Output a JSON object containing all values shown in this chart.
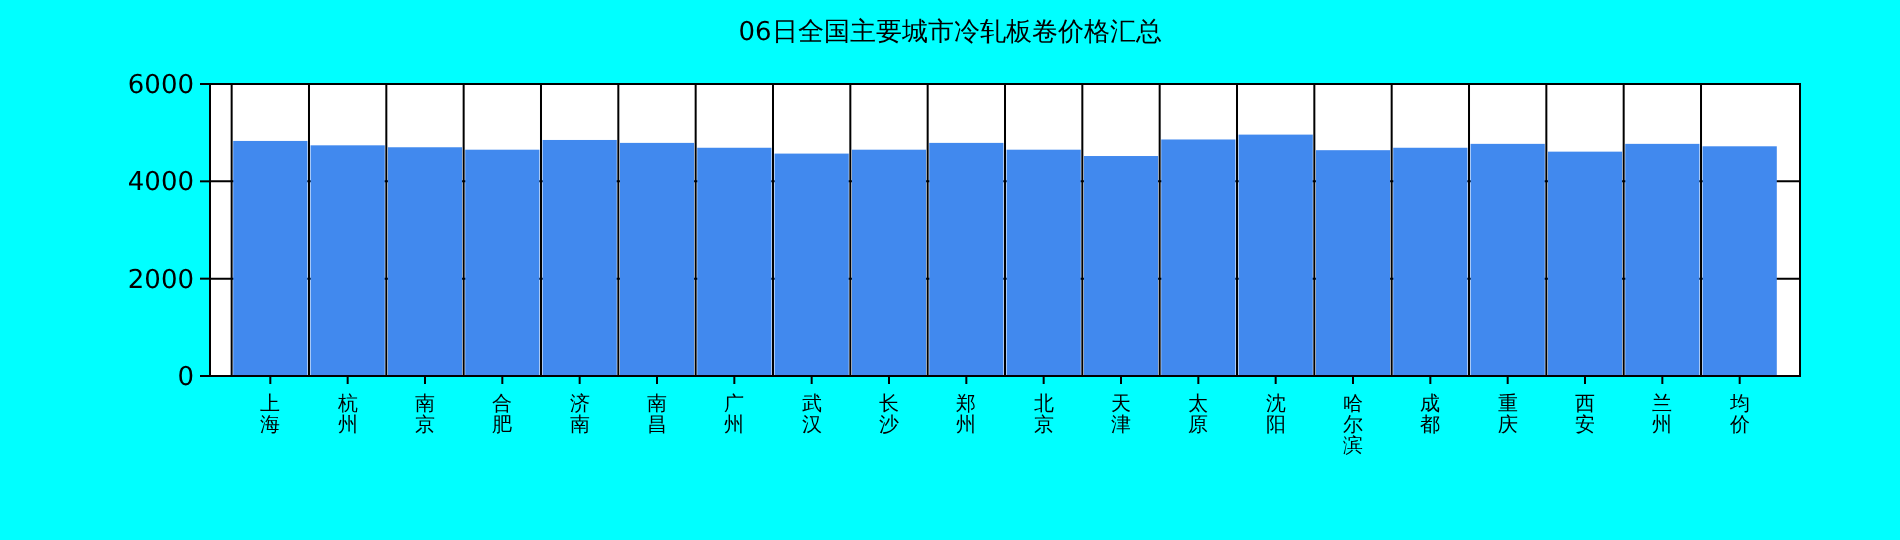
{
  "chart_data": {
    "type": "bar",
    "title": "06日全国主要城市冷轧板卷价格汇总",
    "categories": [
      "上海",
      "杭州",
      "南京",
      "合肥",
      "济南",
      "南昌",
      "广州",
      "武汉",
      "长沙",
      "郑州",
      "北京",
      "天津",
      "太原",
      "沈阳",
      "哈尔滨",
      "成都",
      "重庆",
      "西安",
      "兰州",
      "均价"
    ],
    "values": [
      4830,
      4740,
      4700,
      4650,
      4850,
      4790,
      4690,
      4570,
      4650,
      4790,
      4650,
      4520,
      4860,
      4960,
      4640,
      4690,
      4770,
      4610,
      4770,
      4720
    ],
    "color": "#4189ee",
    "ylim": [
      0,
      6000
    ],
    "yticks": [
      0,
      2000,
      4000,
      6000
    ],
    "grid": true
  }
}
